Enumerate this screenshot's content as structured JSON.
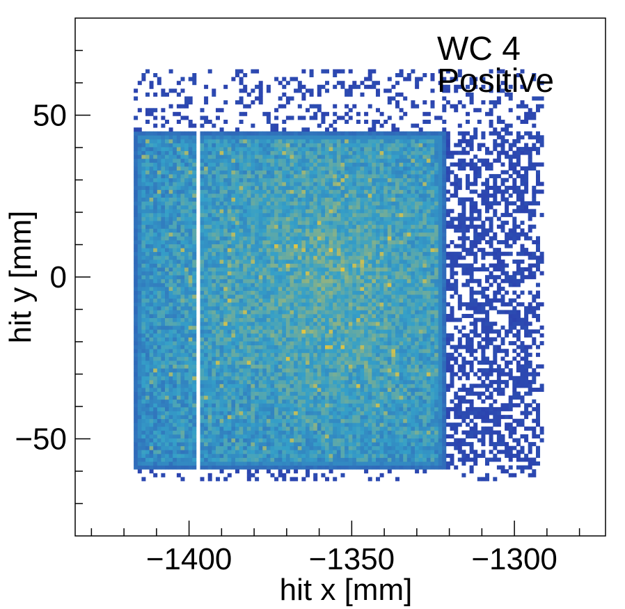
{
  "chart_data": {
    "type": "heatmap",
    "title": "",
    "xlabel": "hit x [mm]",
    "ylabel": "hit y [mm]",
    "xlim": [
      -1435,
      -1272
    ],
    "ylim": [
      -80,
      80
    ],
    "x_ticks": [
      {
        "value": -1400,
        "label": "−1400"
      },
      {
        "value": -1350,
        "label": "−1350"
      },
      {
        "value": -1300,
        "label": "−1300"
      }
    ],
    "y_ticks": [
      {
        "value": 50,
        "label": "50"
      },
      {
        "value": 0,
        "label": "0"
      },
      {
        "value": -50,
        "label": "−50"
      }
    ],
    "annotations": [
      "WC 4",
      "Positive"
    ],
    "bin_size_mm": 1.2,
    "dense_region": {
      "x": [
        -1417,
        -1321
      ],
      "y": [
        -59,
        45
      ]
    },
    "dead_strip_x": [
      -1398,
      -1396.7
    ],
    "sparse_region": {
      "x": [
        -1321,
        -1292
      ],
      "y": [
        -59,
        45
      ]
    },
    "halo_region": {
      "x": [
        -1417,
        -1292
      ],
      "y": [
        -63,
        64
      ]
    },
    "hot_center": {
      "x": -1357,
      "y": -2
    },
    "grid": false,
    "colormap": {
      "low": "#2b3fae",
      "mid": "#35a0c8",
      "high": "#f4c834"
    },
    "colors": {
      "frame": "#000000",
      "background": "#ffffff"
    }
  }
}
